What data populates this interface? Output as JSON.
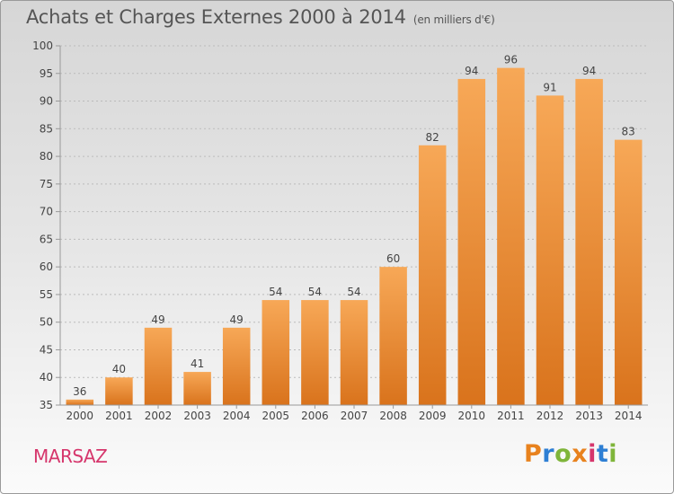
{
  "header": {
    "title": "Achats et Charges Externes 2000 à 2014",
    "subtitle": "(en milliers d'€)"
  },
  "footer": {
    "commune": "MARSAZ",
    "logo_text": "Proxiti",
    "logo_colors": [
      "#e8821e",
      "#2e7fd4",
      "#7fb53a",
      "#e8821e",
      "#d6366c",
      "#2e7fd4",
      "#7fb53a"
    ]
  },
  "colors": {
    "bar_light": "#f7a857",
    "bar_dark": "#d9731c",
    "grid": "#bbbbbb",
    "axis": "#999999"
  },
  "chart_data": {
    "type": "bar",
    "title": "Achats et Charges Externes 2000 à 2014",
    "subtitle": "(en milliers d'€)",
    "xlabel": "",
    "ylabel": "",
    "categories": [
      "2000",
      "2001",
      "2002",
      "2003",
      "2004",
      "2005",
      "2006",
      "2007",
      "2008",
      "2009",
      "2010",
      "2011",
      "2012",
      "2013",
      "2014"
    ],
    "values": [
      36,
      40,
      49,
      41,
      49,
      54,
      54,
      54,
      60,
      82,
      94,
      96,
      91,
      94,
      83
    ],
    "ylim": [
      35,
      100
    ],
    "yticks": [
      35,
      40,
      45,
      50,
      55,
      60,
      65,
      70,
      75,
      80,
      85,
      90,
      95,
      100
    ],
    "grid": true,
    "legend": "none"
  }
}
